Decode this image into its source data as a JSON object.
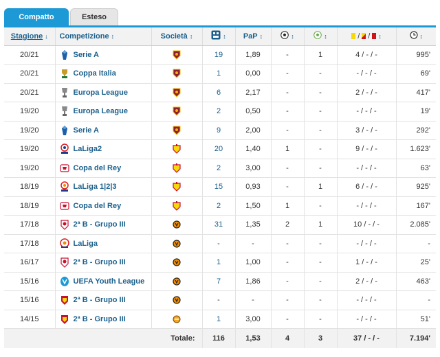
{
  "tabs": [
    {
      "label": "Compatto",
      "active": true
    },
    {
      "label": "Esteso",
      "active": false
    }
  ],
  "headers": {
    "season": "Stagione",
    "competition": "Competizione",
    "club": "Società",
    "appearances_icon": "appearances-icon",
    "ppg": "PaP",
    "goals_icon": "ball-icon",
    "assists_icon": "assist-ball-icon",
    "cards_icon": "yellow-red-cards-icon",
    "minutes_icon": "clock-icon",
    "sort_indicator": "↕",
    "sort_active": "↓"
  },
  "colors": {
    "accent": "#1d9ad6",
    "link": "#1a5f8c",
    "roma": "#8e1f2f",
    "valencia": "#f28c00",
    "murcia": "#c8102e"
  },
  "rows": [
    {
      "season": "20/21",
      "competition": "Serie A",
      "comp_icon": "serie-a-logo",
      "club": "roma",
      "apps": "19",
      "ppg": "1,89",
      "goals": "-",
      "assists": "1",
      "cards": "4 / - / -",
      "minutes": "995'"
    },
    {
      "season": "20/21",
      "competition": "Coppa Italia",
      "comp_icon": "coppa-italia-logo",
      "club": "roma",
      "apps": "1",
      "ppg": "0,00",
      "goals": "-",
      "assists": "-",
      "cards": "- / - / -",
      "minutes": "69'"
    },
    {
      "season": "20/21",
      "competition": "Europa League",
      "comp_icon": "europa-league-logo",
      "club": "roma",
      "apps": "6",
      "ppg": "2,17",
      "goals": "-",
      "assists": "-",
      "cards": "2 / - / -",
      "minutes": "417'"
    },
    {
      "season": "19/20",
      "competition": "Europa League",
      "comp_icon": "europa-league-logo",
      "club": "roma",
      "apps": "2",
      "ppg": "0,50",
      "goals": "-",
      "assists": "-",
      "cards": "- / - / -",
      "minutes": "19'"
    },
    {
      "season": "19/20",
      "competition": "Serie A",
      "comp_icon": "serie-a-logo",
      "club": "roma",
      "apps": "9",
      "ppg": "2,00",
      "goals": "-",
      "assists": "-",
      "cards": "3 / - / -",
      "minutes": "292'"
    },
    {
      "season": "19/20",
      "competition": "LaLiga2",
      "comp_icon": "laliga2-logo",
      "club": "murcia",
      "apps": "20",
      "ppg": "1,40",
      "goals": "1",
      "assists": "-",
      "cards": "9 / - / -",
      "minutes": "1.623'"
    },
    {
      "season": "19/20",
      "competition": "Copa del Rey",
      "comp_icon": "copa-del-rey-logo",
      "club": "murcia",
      "apps": "2",
      "ppg": "3,00",
      "goals": "-",
      "assists": "-",
      "cards": "- / - / -",
      "minutes": "63'"
    },
    {
      "season": "18/19",
      "competition": "LaLiga 1|2|3",
      "comp_icon": "laliga123-logo",
      "club": "murcia",
      "apps": "15",
      "ppg": "0,93",
      "goals": "-",
      "assists": "1",
      "cards": "6 / - / -",
      "minutes": "925'"
    },
    {
      "season": "18/19",
      "competition": "Copa del Rey",
      "comp_icon": "copa-del-rey-logo",
      "club": "murcia",
      "apps": "2",
      "ppg": "1,50",
      "goals": "1",
      "assists": "-",
      "cards": "- / - / -",
      "minutes": "167'"
    },
    {
      "season": "17/18",
      "competition": "2ª B - Grupo III",
      "comp_icon": "segunda-b-logo",
      "club": "valencia",
      "apps": "31",
      "ppg": "1,35",
      "goals": "2",
      "assists": "1",
      "cards": "10 / - / -",
      "minutes": "2.085'"
    },
    {
      "season": "17/18",
      "competition": "LaLiga",
      "comp_icon": "laliga-logo",
      "club": "valencia",
      "apps": "-",
      "ppg": "-",
      "goals": "-",
      "assists": "-",
      "cards": "- / - / -",
      "minutes": "-"
    },
    {
      "season": "16/17",
      "competition": "2ª B - Grupo III",
      "comp_icon": "segunda-b-logo",
      "club": "valencia",
      "apps": "1",
      "ppg": "1,00",
      "goals": "-",
      "assists": "-",
      "cards": "1 / - / -",
      "minutes": "25'"
    },
    {
      "season": "15/16",
      "competition": "UEFA Youth League",
      "comp_icon": "uefa-youth-league-logo",
      "club": "valencia",
      "apps": "7",
      "ppg": "1,86",
      "goals": "-",
      "assists": "-",
      "cards": "2 / - / -",
      "minutes": "463'"
    },
    {
      "season": "15/16",
      "competition": "2ª B - Grupo III",
      "comp_icon": "segunda-b-old-logo",
      "club": "valencia",
      "apps": "-",
      "ppg": "-",
      "goals": "-",
      "assists": "-",
      "cards": "- / - / -",
      "minutes": "-"
    },
    {
      "season": "14/15",
      "competition": "2ª B - Grupo III",
      "comp_icon": "segunda-b-old-logo",
      "club": "valencia-b",
      "apps": "1",
      "ppg": "3,00",
      "goals": "-",
      "assists": "-",
      "cards": "- / - / -",
      "minutes": "51'"
    }
  ],
  "totals": {
    "label": "Totale:",
    "apps": "116",
    "ppg": "1,53",
    "goals": "4",
    "assists": "3",
    "cards": "37 / - / -",
    "minutes": "7.194'"
  }
}
